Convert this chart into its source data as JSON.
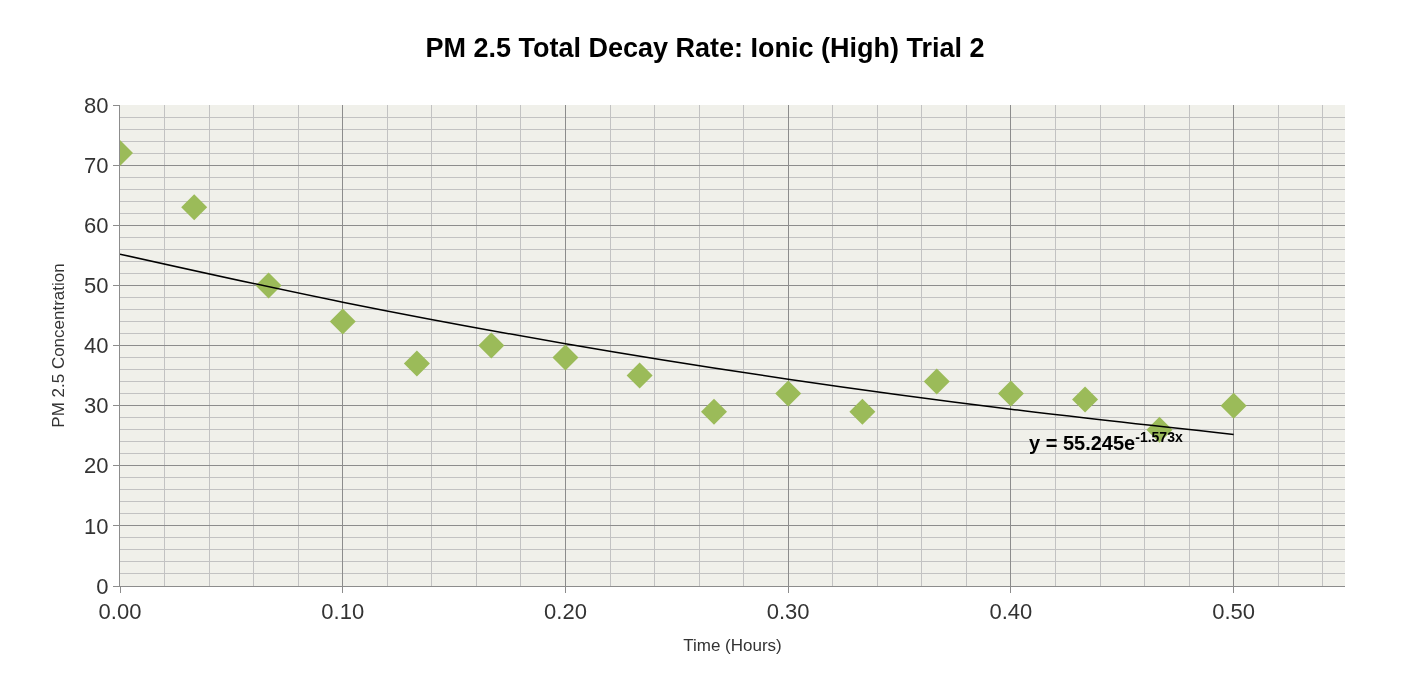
{
  "chart_data": {
    "type": "scatter",
    "title": "PM 2.5 Total Decay Rate: Ionic (High) Trial 2",
    "xlabel": "Time (Hours)",
    "ylabel": "PM 2.5 Concentration",
    "x": [
      0,
      0.0333,
      0.0667,
      0.1,
      0.1333,
      0.1667,
      0.2,
      0.2333,
      0.2667,
      0.3,
      0.3333,
      0.3667,
      0.4,
      0.4333,
      0.4667,
      0.5
    ],
    "series": [
      {
        "color": "#9bbb59",
        "marker": "diamond",
        "values": [
          72,
          63,
          50,
          44,
          37,
          40,
          38,
          35,
          29,
          32,
          29,
          34,
          32,
          31,
          26,
          30
        ]
      },
      {
        "type": "line",
        "color": "#000000",
        "line_style": "solid",
        "marker": "none",
        "x": [
          0,
          0.1,
          0.2,
          0.3,
          0.4,
          0.5
        ],
        "values": [
          55.2,
          47.2,
          40.3,
          34.4,
          29.4,
          25.2
        ]
      }
    ],
    "annotations": [
      "y = 55.245e$^{-1.573x}$"
    ],
    "xlim": [
      0,
      0.55
    ],
    "xticks": [
      {
        "value": 0,
        "label": "0.00"
      },
      {
        "value": 0.1,
        "label": "0.10"
      },
      {
        "value": 0.2,
        "label": "0.20"
      },
      {
        "value": 0.3,
        "label": "0.30"
      },
      {
        "value": 0.4,
        "label": "0.40"
      },
      {
        "value": 0.5,
        "label": "0.50"
      }
    ],
    "ylim": [
      0,
      80
    ],
    "yticks": [
      0,
      10,
      20,
      30,
      40,
      50,
      60,
      70,
      80
    ],
    "grid": true
  }
}
